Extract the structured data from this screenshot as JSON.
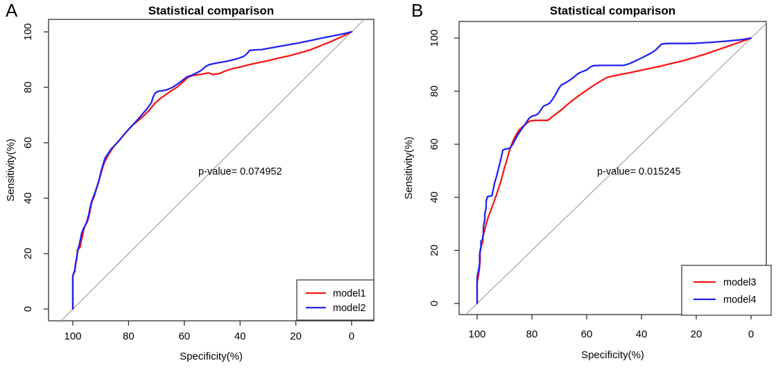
{
  "figure_label": "ROC statistical comparison figure",
  "colors": {
    "series_red": "#f81515",
    "series_blue": "#2121f0",
    "diagonal": "#9a9a9a",
    "frame": "#2e2e2e",
    "text": "#000000",
    "background": "#ffffff"
  },
  "chart_data": [
    {
      "type": "line",
      "panel_label": "A",
      "title": "Statistical comparison",
      "xlabel": "Specificity(%)",
      "ylabel": "Sensitivity(%)",
      "annotation": "p-value= 0.074952",
      "x_ticks": [
        100,
        80,
        60,
        40,
        20,
        0
      ],
      "y_ticks": [
        0,
        20,
        40,
        60,
        80,
        100
      ],
      "xlim": [
        100,
        0
      ],
      "ylim": [
        0,
        100
      ],
      "x_axis_reversed": true,
      "grid": false,
      "reference_line": "diagonal chance line (sensitivity = 100 - specificity)",
      "legend_position": "bottomright",
      "series": [
        {
          "name": "model1",
          "color": "#f81515",
          "points": [
            [
              100,
              0
            ],
            [
              100,
              12
            ],
            [
              99.3,
              13.5
            ],
            [
              99,
              16
            ],
            [
              98.6,
              18
            ],
            [
              98.3,
              21.5
            ],
            [
              97.6,
              22
            ],
            [
              97.3,
              22.5
            ],
            [
              97,
              24.5
            ],
            [
              96.5,
              26.5
            ],
            [
              96,
              29
            ],
            [
              95.4,
              30.5
            ],
            [
              94.8,
              31.5
            ],
            [
              94.2,
              33.5
            ],
            [
              93.7,
              36
            ],
            [
              93.2,
              38.5
            ],
            [
              92.4,
              40.5
            ],
            [
              91.5,
              43.5
            ],
            [
              90.7,
              46
            ],
            [
              90,
              48.5
            ],
            [
              89.3,
              51
            ],
            [
              88.6,
              53
            ],
            [
              87.6,
              55
            ],
            [
              86.4,
              57
            ],
            [
              85.2,
              58.8
            ],
            [
              83.6,
              60.5
            ],
            [
              82,
              62.5
            ],
            [
              80.3,
              64.5
            ],
            [
              78.6,
              66.3
            ],
            [
              76.8,
              67.8
            ],
            [
              74.8,
              69.5
            ],
            [
              72.8,
              71.5
            ],
            [
              70.8,
              74
            ],
            [
              68.8,
              75.8
            ],
            [
              66.8,
              77.2
            ],
            [
              64.6,
              78.8
            ],
            [
              62.4,
              80.2
            ],
            [
              60.4,
              82
            ],
            [
              58.8,
              83.5
            ],
            [
              57.2,
              84.2
            ],
            [
              55.4,
              84.5
            ],
            [
              53.4,
              84.8
            ],
            [
              51.4,
              85.2
            ],
            [
              49.6,
              84.6
            ],
            [
              47.4,
              85
            ],
            [
              45,
              86
            ],
            [
              42.4,
              86.8
            ],
            [
              39.6,
              87.4
            ],
            [
              36.6,
              88.2
            ],
            [
              33.4,
              88.9
            ],
            [
              30,
              89.6
            ],
            [
              26.4,
              90.5
            ],
            [
              22.6,
              91.3
            ],
            [
              18.6,
              92.4
            ],
            [
              14.6,
              93.6
            ],
            [
              10.6,
              95.2
            ],
            [
              6.6,
              96.9
            ],
            [
              3,
              98.5
            ],
            [
              0,
              100
            ]
          ]
        },
        {
          "name": "model2",
          "color": "#2121f0",
          "points": [
            [
              100,
              0
            ],
            [
              100,
              12
            ],
            [
              99.3,
              14
            ],
            [
              99,
              16.5
            ],
            [
              98.6,
              18.5
            ],
            [
              98.2,
              21
            ],
            [
              97.6,
              23.5
            ],
            [
              97.2,
              25.5
            ],
            [
              96.8,
              27.5
            ],
            [
              96.2,
              29
            ],
            [
              95.6,
              30
            ],
            [
              95,
              31.5
            ],
            [
              94.4,
              33.5
            ],
            [
              93.8,
              36.5
            ],
            [
              93.2,
              39
            ],
            [
              92.4,
              41
            ],
            [
              91.4,
              44
            ],
            [
              90.6,
              46.5
            ],
            [
              89.9,
              49.5
            ],
            [
              89.2,
              52
            ],
            [
              88.4,
              54.5
            ],
            [
              87.4,
              56
            ],
            [
              86.2,
              57.8
            ],
            [
              84.8,
              59.2
            ],
            [
              83.2,
              61
            ],
            [
              81.6,
              63
            ],
            [
              80,
              64.8
            ],
            [
              78.3,
              66.6
            ],
            [
              76.6,
              68.5
            ],
            [
              74.9,
              70.5
            ],
            [
              73.2,
              72.5
            ],
            [
              71.8,
              74.5
            ],
            [
              71.2,
              76.5
            ],
            [
              70.4,
              78
            ],
            [
              69.2,
              78.6
            ],
            [
              67.6,
              78.8
            ],
            [
              66,
              79.2
            ],
            [
              64.2,
              80
            ],
            [
              62.4,
              81.2
            ],
            [
              60.6,
              82.6
            ],
            [
              59,
              83.8
            ],
            [
              57.4,
              84.3
            ],
            [
              55.6,
              85.2
            ],
            [
              53.8,
              86.2
            ],
            [
              52.4,
              87.5
            ],
            [
              51,
              88.2
            ],
            [
              48.8,
              88.7
            ],
            [
              46.4,
              89.1
            ],
            [
              43.8,
              89.6
            ],
            [
              41,
              90.3
            ],
            [
              38.6,
              91.2
            ],
            [
              37.4,
              92.3
            ],
            [
              36.6,
              93.3
            ],
            [
              34.6,
              93.5
            ],
            [
              32.4,
              93.6
            ],
            [
              29.6,
              94.1
            ],
            [
              26.4,
              94.7
            ],
            [
              22.8,
              95.3
            ],
            [
              19,
              96
            ],
            [
              15,
              96.8
            ],
            [
              11,
              97.7
            ],
            [
              7,
              98.5
            ],
            [
              3.4,
              99.2
            ],
            [
              0,
              100
            ]
          ]
        }
      ]
    },
    {
      "type": "line",
      "panel_label": "B",
      "title": "Statistical comparison",
      "xlabel": "Specificity(%)",
      "ylabel": "Sensitivity(%)",
      "annotation": "p-value= 0.015245",
      "x_ticks": [
        100,
        80,
        60,
        40,
        20,
        0
      ],
      "y_ticks": [
        0,
        20,
        40,
        60,
        80,
        100
      ],
      "xlim": [
        100,
        0
      ],
      "ylim": [
        0,
        100
      ],
      "x_axis_reversed": true,
      "grid": false,
      "reference_line": "diagonal chance line (sensitivity = 100 - specificity)",
      "legend_position": "bottomright",
      "series": [
        {
          "name": "model3",
          "color": "#f81515",
          "points": [
            [
              100,
              0
            ],
            [
              100,
              8
            ],
            [
              99.6,
              10
            ],
            [
              99.2,
              13
            ],
            [
              98.9,
              16
            ],
            [
              98.9,
              20
            ],
            [
              98.4,
              22
            ],
            [
              97.9,
              23
            ],
            [
              97.9,
              25.5
            ],
            [
              97.4,
              27
            ],
            [
              96.9,
              29
            ],
            [
              96.4,
              31
            ],
            [
              95.8,
              33
            ],
            [
              95.2,
              34.5
            ],
            [
              94.5,
              36.5
            ],
            [
              93.8,
              38.5
            ],
            [
              93.1,
              40.5
            ],
            [
              92.3,
              43
            ],
            [
              91.5,
              45.5
            ],
            [
              90.8,
              48
            ],
            [
              90.2,
              50.5
            ],
            [
              89.6,
              52.5
            ],
            [
              89,
              54.5
            ],
            [
              88.4,
              57
            ],
            [
              87.7,
              59
            ],
            [
              86.8,
              61.5
            ],
            [
              85.8,
              63.5
            ],
            [
              84.6,
              65.5
            ],
            [
              83.2,
              66.8
            ],
            [
              81.8,
              68
            ],
            [
              80.6,
              68.8
            ],
            [
              79,
              69
            ],
            [
              76.6,
              69
            ],
            [
              74.2,
              69
            ],
            [
              71.8,
              71
            ],
            [
              69.2,
              73
            ],
            [
              66.4,
              75.5
            ],
            [
              63.6,
              77.8
            ],
            [
              60.8,
              79.8
            ],
            [
              58,
              81.8
            ],
            [
              55.2,
              83.6
            ],
            [
              52.6,
              85.2
            ],
            [
              50,
              85.8
            ],
            [
              47.2,
              86.4
            ],
            [
              44,
              87
            ],
            [
              40.6,
              87.8
            ],
            [
              37,
              88.6
            ],
            [
              33.2,
              89.4
            ],
            [
              29.2,
              90.4
            ],
            [
              25,
              91.4
            ],
            [
              20.8,
              92.7
            ],
            [
              16.6,
              94
            ],
            [
              12.4,
              95.5
            ],
            [
              8.2,
              97
            ],
            [
              4,
              98.5
            ],
            [
              0,
              100
            ]
          ]
        },
        {
          "name": "model4",
          "color": "#2121f0",
          "points": [
            [
              100,
              0
            ],
            [
              100,
              10
            ],
            [
              99.5,
              12.5
            ],
            [
              99.1,
              15
            ],
            [
              99.1,
              18.5
            ],
            [
              98.6,
              21
            ],
            [
              98.6,
              23.5
            ],
            [
              98.1,
              24
            ],
            [
              97.7,
              26
            ],
            [
              97.7,
              29
            ],
            [
              97.2,
              31.5
            ],
            [
              97.2,
              34
            ],
            [
              96.7,
              36
            ],
            [
              96.7,
              38.5
            ],
            [
              96.2,
              40.3
            ],
            [
              94.6,
              40.6
            ],
            [
              94.1,
              43
            ],
            [
              93.6,
              45.5
            ],
            [
              93,
              47.5
            ],
            [
              92.4,
              50
            ],
            [
              91.8,
              52.5
            ],
            [
              91.2,
              55
            ],
            [
              90.6,
              57.8
            ],
            [
              89.6,
              58.2
            ],
            [
              88,
              58.5
            ],
            [
              87,
              60
            ],
            [
              86,
              62
            ],
            [
              85,
              63.8
            ],
            [
              84,
              65.3
            ],
            [
              83,
              66.8
            ],
            [
              82,
              68.3
            ],
            [
              81,
              69.8
            ],
            [
              80,
              70.6
            ],
            [
              78.8,
              70.9
            ],
            [
              77.8,
              71.4
            ],
            [
              76.8,
              72.8
            ],
            [
              75.8,
              74.3
            ],
            [
              74.8,
              74.8
            ],
            [
              73.6,
              75.4
            ],
            [
              72.4,
              77
            ],
            [
              71.2,
              79
            ],
            [
              70.2,
              81
            ],
            [
              69.4,
              82.2
            ],
            [
              68,
              83
            ],
            [
              66.4,
              84
            ],
            [
              64.8,
              85.2
            ],
            [
              63.2,
              86.6
            ],
            [
              61.6,
              87.4
            ],
            [
              60,
              88
            ],
            [
              58.8,
              89
            ],
            [
              57.6,
              89.6
            ],
            [
              55,
              89.7
            ],
            [
              52,
              89.7
            ],
            [
              49,
              89.7
            ],
            [
              46.6,
              89.7
            ],
            [
              44.6,
              90.3
            ],
            [
              42.6,
              91.2
            ],
            [
              40.6,
              92.2
            ],
            [
              38.6,
              93.2
            ],
            [
              36.6,
              94.3
            ],
            [
              34.8,
              95.5
            ],
            [
              33.6,
              96.8
            ],
            [
              32.6,
              97.8
            ],
            [
              30,
              98
            ],
            [
              27,
              98
            ],
            [
              24,
              98
            ],
            [
              21,
              98
            ],
            [
              18,
              98.2
            ],
            [
              14.6,
              98.4
            ],
            [
              11,
              98.7
            ],
            [
              7.4,
              99
            ],
            [
              3.6,
              99.4
            ],
            [
              0,
              100
            ]
          ]
        }
      ]
    }
  ]
}
